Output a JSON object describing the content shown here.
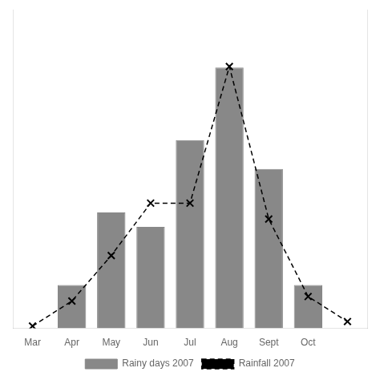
{
  "chart_data": {
    "type": "bar",
    "categories": [
      "Mar",
      "Apr",
      "May",
      "Jun",
      "Jul",
      "Aug",
      "Sept",
      "Oct",
      null
    ],
    "series": [
      {
        "name": "Rainy days 2007",
        "type": "bar",
        "color": "#888888",
        "values": [
          0,
          3,
          8,
          7,
          13,
          18,
          11,
          3,
          null
        ]
      },
      {
        "name": "Rainfall 2007",
        "type": "line",
        "axis": "y2",
        "color": "#000000",
        "line_style": "dashed",
        "marker": "x",
        "values": [
          1,
          12,
          32,
          55,
          55,
          115,
          48,
          14,
          3
        ]
      }
    ],
    "ylim": [
      0,
      22
    ],
    "y2lim": [
      0,
      140
    ],
    "grid": false,
    "legend": "bottom",
    "tick_labels": "x"
  }
}
